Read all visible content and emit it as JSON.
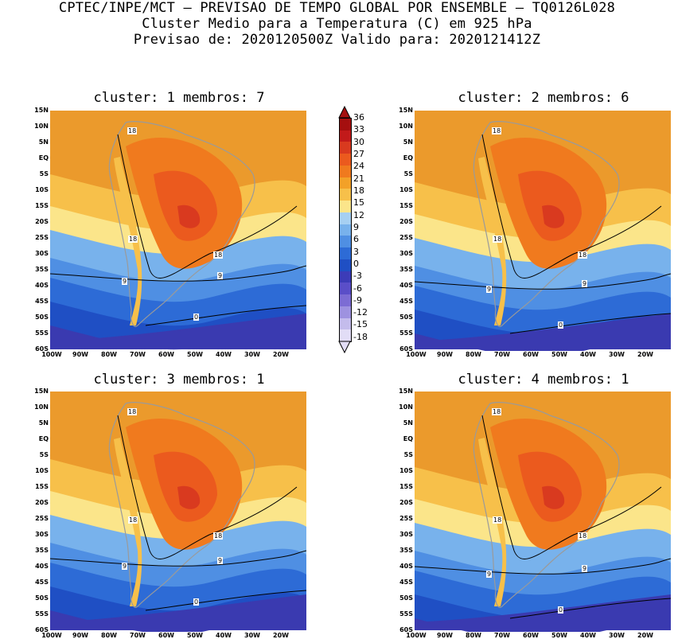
{
  "header": {
    "line1": "CPTEC/INPE/MCT — PREVISAO DE TEMPO GLOBAL POR ENSEMBLE — TQ0126L028",
    "line2": "Cluster Medio para a Temperatura (C) em 925 hPa",
    "line3": "Previsao de: 2020120500Z    Valido para: 2020121412Z"
  },
  "panels": [
    {
      "title": "cluster: 1   membros: 7"
    },
    {
      "title": "cluster: 2   membros: 6"
    },
    {
      "title": "cluster: 3   membros: 1"
    },
    {
      "title": "cluster: 4   membros: 1"
    }
  ],
  "lat_labels": [
    "15N",
    "10N",
    "5N",
    "EQ",
    "5S",
    "10S",
    "15S",
    "20S",
    "25S",
    "30S",
    "35S",
    "40S",
    "45S",
    "50S",
    "55S",
    "60S"
  ],
  "lon_labels": [
    "100W",
    "90W",
    "80W",
    "70W",
    "60W",
    "50W",
    "40W",
    "30W",
    "20W"
  ],
  "colorbar": {
    "labels": [
      "36",
      "33",
      "30",
      "27",
      "24",
      "21",
      "18",
      "15",
      "12",
      "9",
      "6",
      "3",
      "0",
      "-3",
      "-6",
      "-9",
      "-12",
      "-15",
      "-18"
    ],
    "colors": [
      "#a50f0f",
      "#c21a1a",
      "#d93a1f",
      "#eb5a1e",
      "#f07a1e",
      "#f3a128",
      "#f7c04a",
      "#fbe58a",
      "#a6d0f2",
      "#78b2ec",
      "#4f8fe3",
      "#2d6bd6",
      "#1f4fc4",
      "#3c3cb8",
      "#5a4ec8",
      "#7c6cd4",
      "#9e92e0",
      "#c4bcec",
      "#e2ddf6"
    ]
  },
  "contour_labels": [
    "18",
    "9",
    "0"
  ]
}
